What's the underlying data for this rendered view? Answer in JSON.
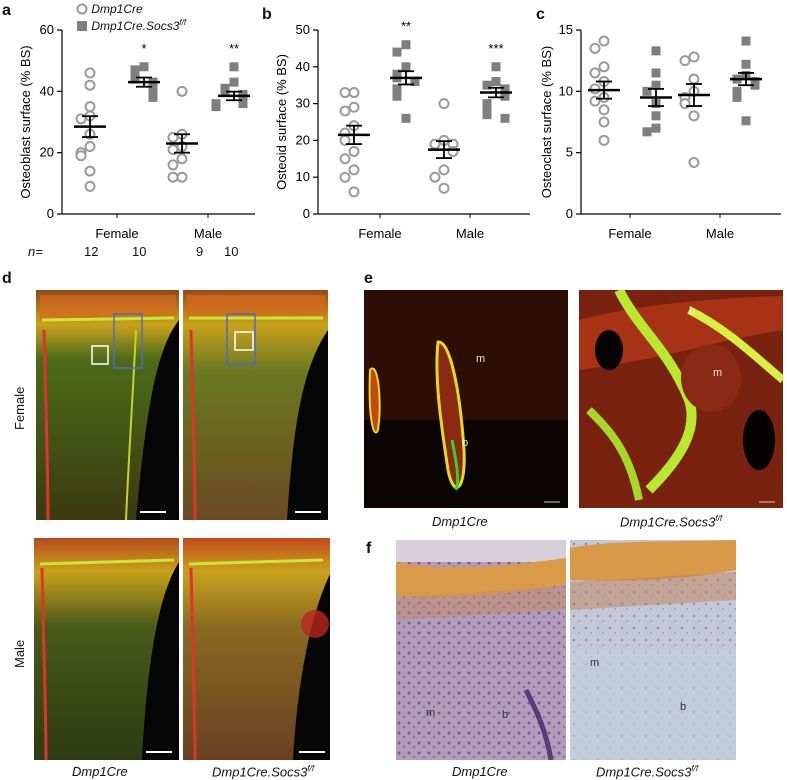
{
  "panels": {
    "a": "a",
    "b": "b",
    "c": "c",
    "d": "d",
    "e": "e",
    "f": "f"
  },
  "legend": {
    "dmp1cre": "Dmp1Cre",
    "socs3_base": "Dmp1Cre.Socs3",
    "socs3_sup": "f/f"
  },
  "n_row": {
    "label": "n=",
    "female": [
      "12",
      "10"
    ],
    "male": [
      "9",
      "10"
    ]
  },
  "group_labels": [
    "Female",
    "Male"
  ],
  "colors": {
    "open_marker": "#9a9a9a",
    "filled_marker": "#7f7f7f",
    "mean_bar": "#000000"
  },
  "chart_data": [
    {
      "id": "a",
      "type": "scatter",
      "ylabel": "Osteoblast surface (% BS)",
      "ylim": [
        0,
        60
      ],
      "yticks": [
        0,
        20,
        40,
        60
      ],
      "categories": [
        "Female",
        "Male"
      ],
      "series": [
        {
          "name": "Dmp1Cre",
          "values": [
            [
              46,
              42,
              35,
              32,
              31,
              26,
              22,
              20,
              19,
              14,
              9
            ],
            [
              40,
              26,
              25,
              22,
              21,
              18,
              16,
              12,
              12
            ]
          ],
          "mean": [
            28.5,
            23
          ],
          "sem": [
            3.4,
            3.0
          ]
        },
        {
          "name": "Dmp1Cre.Socs3f/f",
          "values": [
            [
              48,
              47,
              45,
              44,
              43,
              42,
              41,
              40,
              39,
              38
            ],
            [
              48,
              43,
              41,
              40,
              39,
              38,
              37,
              36,
              36,
              35
            ]
          ],
          "mean": [
            43,
            38.5
          ],
          "sem": [
            1.5,
            1.4
          ]
        }
      ],
      "significance": [
        "*",
        "**"
      ]
    },
    {
      "id": "b",
      "type": "scatter",
      "ylabel": "Osteoid surface (% BS)",
      "ylim": [
        0,
        50
      ],
      "yticks": [
        0,
        10,
        20,
        30,
        40,
        50
      ],
      "categories": [
        "Female",
        "Male"
      ],
      "series": [
        {
          "name": "Dmp1Cre",
          "values": [
            [
              33,
              33,
              29,
              28,
              24,
              22,
              20,
              17,
              15,
              12,
              10,
              6
            ],
            [
              30,
              20,
              19,
              19,
              17,
              12,
              10,
              7
            ]
          ],
          "mean": [
            21.5,
            17.5
          ],
          "sem": [
            2.5,
            2.3
          ]
        },
        {
          "name": "Dmp1Cre.Socs3f/f",
          "values": [
            [
              46,
              44,
              40,
              38,
              37,
              36,
              34,
              32,
              26
            ],
            [
              40,
              36,
              35,
              34,
              33,
              32,
              30,
              28,
              27,
              26
            ]
          ],
          "mean": [
            37,
            33
          ],
          "sem": [
            1.8,
            1.3
          ]
        }
      ],
      "significance": [
        "**",
        "***"
      ]
    },
    {
      "id": "c",
      "type": "scatter",
      "ylabel": "Osteoclast surface (% BS)",
      "ylim": [
        0,
        15
      ],
      "yticks": [
        0,
        5,
        10,
        15
      ],
      "categories": [
        "Female",
        "Male"
      ],
      "series": [
        {
          "name": "Dmp1Cre",
          "values": [
            [
              14.1,
              13.5,
              12.0,
              11.5,
              10.8,
              10.2,
              9.5,
              9.2,
              8.5,
              7.5,
              6.0
            ],
            [
              12.8,
              12.5,
              11.0,
              10.0,
              9.5,
              9.0,
              8.0,
              4.2
            ]
          ],
          "mean": [
            10.1,
            9.7
          ],
          "sem": [
            0.7,
            0.9
          ]
        },
        {
          "name": "Dmp1Cre.Socs3f/f",
          "values": [
            [
              13.3,
              11.5,
              10.5,
              10.0,
              9.0,
              8.0,
              7.0,
              6.7
            ],
            [
              14.1,
              12.2,
              11.3,
              11.0,
              10.8,
              10.5,
              10.0,
              9.5,
              7.6
            ]
          ],
          "mean": [
            9.5,
            11.0
          ],
          "sem": [
            0.7,
            0.5
          ]
        }
      ],
      "significance": [
        "",
        ""
      ]
    }
  ],
  "d": {
    "row_labels": [
      "Female",
      "Male"
    ],
    "captions": [
      "Dmp1Cre",
      "Dmp1Cre.Socs3"
    ],
    "sup": "f/f"
  },
  "e": {
    "captions": [
      "Dmp1Cre",
      "Dmp1Cre.Socs3"
    ],
    "sup": "f/f",
    "annotations": [
      "m",
      "b",
      "b",
      "m"
    ]
  },
  "f": {
    "captions": [
      "Dmp1Cre",
      "Dmp1Cre.Socs3"
    ],
    "sup": "f/f",
    "annotations": [
      "m",
      "b",
      "m",
      "b"
    ]
  }
}
